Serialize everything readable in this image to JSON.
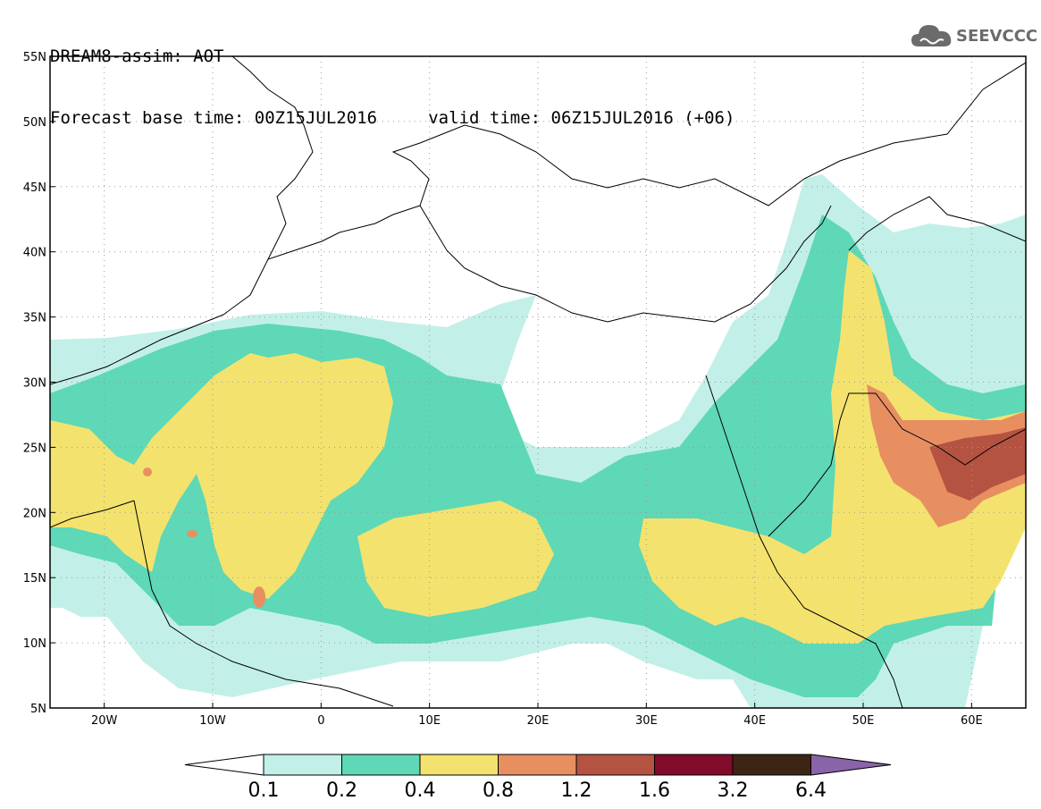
{
  "header": {
    "line1": "DREAM8-assim: AOT",
    "line2": "Forecast base time: 00Z15JUL2016     valid time: 06Z15JUL2016 (+06)"
  },
  "logo": {
    "text": "SEEVCCC",
    "icon": "cloud-icon"
  },
  "map": {
    "lon_range": [
      -25,
      65
    ],
    "lat_range": [
      5,
      55
    ],
    "lon_ticks": [
      {
        "value": -20,
        "label": "20W"
      },
      {
        "value": -10,
        "label": "10W"
      },
      {
        "value": 0,
        "label": "0"
      },
      {
        "value": 10,
        "label": "10E"
      },
      {
        "value": 20,
        "label": "20E"
      },
      {
        "value": 30,
        "label": "30E"
      },
      {
        "value": 40,
        "label": "40E"
      },
      {
        "value": 50,
        "label": "50E"
      },
      {
        "value": 60,
        "label": "60E"
      }
    ],
    "lat_ticks": [
      {
        "value": 5,
        "label": "5N"
      },
      {
        "value": 10,
        "label": "10N"
      },
      {
        "value": 15,
        "label": "15N"
      },
      {
        "value": 20,
        "label": "20N"
      },
      {
        "value": 25,
        "label": "25N"
      },
      {
        "value": 30,
        "label": "30N"
      },
      {
        "value": 35,
        "label": "35N"
      },
      {
        "value": 40,
        "label": "40N"
      },
      {
        "value": 45,
        "label": "45N"
      },
      {
        "value": 50,
        "label": "50N"
      },
      {
        "value": 55,
        "label": "55N"
      }
    ],
    "grid": "dotted"
  },
  "colorbar": {
    "labels": [
      "0.1",
      "0.2",
      "0.4",
      "0.8",
      "1.2",
      "1.6",
      "3.2",
      "6.4"
    ],
    "colors": [
      "#ffffff",
      "#c2f0e8",
      "#5ed8b6",
      "#f3e36e",
      "#e88f62",
      "#b55342",
      "#800b2b",
      "#3d2516",
      "#8a64a8"
    ]
  }
}
